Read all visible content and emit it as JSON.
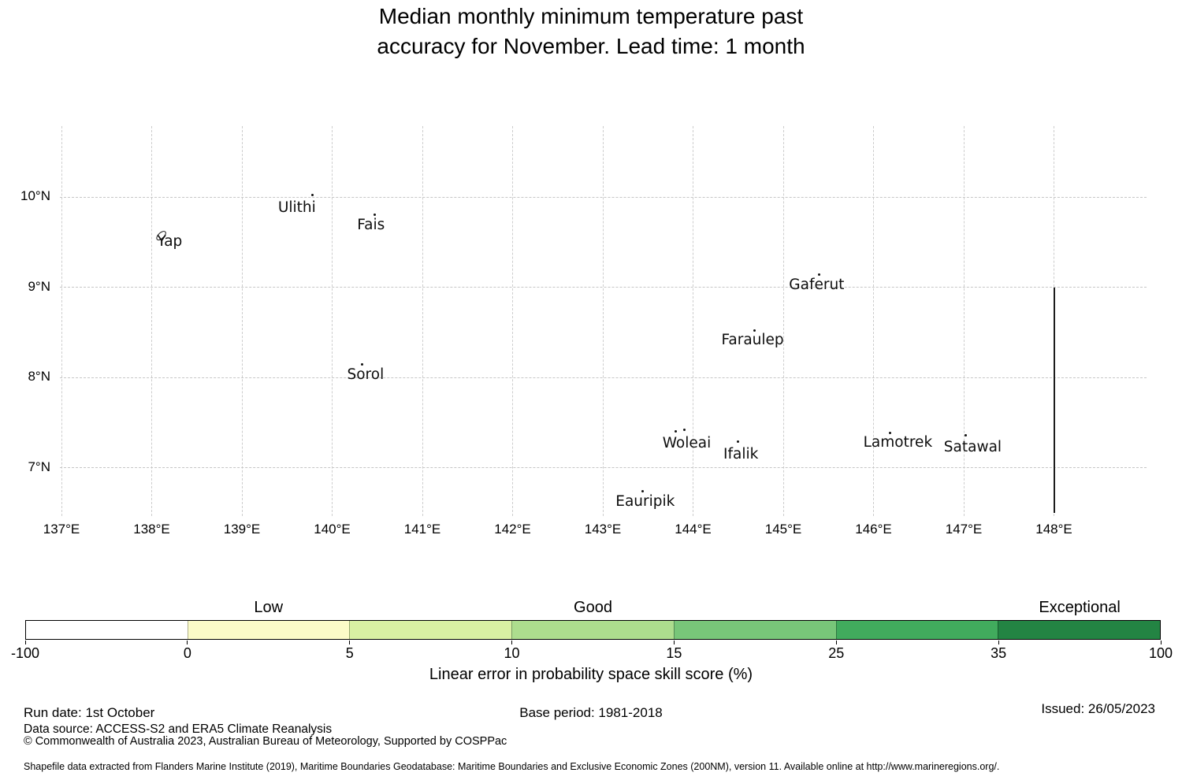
{
  "header": {
    "title_line1": "Median monthly minimum temperature past",
    "title_line2": "accuracy for November. Lead time: 1 month"
  },
  "chart_data": {
    "type": "scatter",
    "title": "Median monthly minimum temperature past accuracy for November. Lead time: 1 month",
    "x_axis": {
      "range": [
        136.99,
        149.03
      ],
      "grid": true,
      "ticks": [
        {
          "value": 137,
          "label": "137°E"
        },
        {
          "value": 138,
          "label": "138°E"
        },
        {
          "value": 139,
          "label": "139°E"
        },
        {
          "value": 140,
          "label": "140°E"
        },
        {
          "value": 141,
          "label": "141°E"
        },
        {
          "value": 142,
          "label": "142°E"
        },
        {
          "value": 143,
          "label": "143°E"
        },
        {
          "value": 144,
          "label": "144°E"
        },
        {
          "value": 145,
          "label": "145°E"
        },
        {
          "value": 146,
          "label": "146°E"
        },
        {
          "value": 147,
          "label": "147°E"
        },
        {
          "value": 148,
          "label": "148°E"
        }
      ]
    },
    "y_axis": {
      "range": [
        6.46,
        10.79
      ],
      "grid": true,
      "ticks": [
        {
          "value": 7,
          "label": "7°N"
        },
        {
          "value": 8,
          "label": "8°N"
        },
        {
          "value": 9,
          "label": "9°N"
        },
        {
          "value": 10,
          "label": "10°N"
        }
      ]
    },
    "islands": [
      {
        "name": "Yap",
        "shape": "outline",
        "points": [
          [
            138.1,
            9.57
          ]
        ],
        "label_pos": [
          138.2,
          9.49
        ]
      },
      {
        "name": "Ulithi",
        "shape": "dot",
        "points": [
          [
            139.78,
            10.02
          ]
        ],
        "label_pos": [
          139.61,
          9.87
        ]
      },
      {
        "name": "Fais",
        "shape": "dot",
        "points": [
          [
            140.47,
            9.8
          ]
        ],
        "label_pos": [
          140.43,
          9.68
        ]
      },
      {
        "name": "Sorol",
        "shape": "dot",
        "points": [
          [
            140.33,
            8.15
          ]
        ],
        "label_pos": [
          140.37,
          8.02
        ]
      },
      {
        "name": "Gaferut",
        "shape": "dot",
        "points": [
          [
            145.4,
            9.14
          ]
        ],
        "label_pos": [
          145.37,
          9.01
        ]
      },
      {
        "name": "Faraulep",
        "shape": "dot",
        "points": [
          [
            144.68,
            8.52
          ]
        ],
        "label_pos": [
          144.66,
          8.4
        ]
      },
      {
        "name": "Woleai",
        "shape": "dot",
        "points": [
          [
            143.81,
            7.4
          ],
          [
            143.9,
            7.42
          ]
        ],
        "label_pos": [
          143.93,
          7.26
        ]
      },
      {
        "name": "Ifalik",
        "shape": "dot",
        "points": [
          [
            144.5,
            7.29
          ]
        ],
        "label_pos": [
          144.53,
          7.14
        ]
      },
      {
        "name": "Lamotrek",
        "shape": "dot",
        "points": [
          [
            146.18,
            7.39
          ]
        ],
        "label_pos": [
          146.27,
          7.27
        ]
      },
      {
        "name": "Satawal",
        "shape": "dot",
        "points": [
          [
            147.02,
            7.36
          ]
        ],
        "label_pos": [
          147.1,
          7.22
        ]
      },
      {
        "name": "Eauripik",
        "shape": "dot",
        "points": [
          [
            143.44,
            6.74
          ]
        ],
        "label_pos": [
          143.47,
          6.61
        ]
      }
    ],
    "eez_boundary": {
      "lon": 148.0,
      "lat_start": 9.0,
      "lat_end": 6.5
    },
    "colorbar": {
      "label": "Linear error in probability space skill score (%)",
      "boundaries": [
        "-100",
        "0",
        "5",
        "10",
        "15",
        "25",
        "35",
        "100"
      ],
      "segment_colors": [
        "#ffffff",
        "#fbfbc8",
        "#d9f0a3",
        "#addd8e",
        "#78c679",
        "#41ab5d",
        "#238443"
      ],
      "categories": [
        {
          "label": "Low",
          "segment_index": 1
        },
        {
          "label": "Good",
          "segment_index": 3
        },
        {
          "label": "Exceptional",
          "segment_index": 6
        }
      ]
    }
  },
  "footer": {
    "run_date": "Run date: 1st October",
    "base_period": "Base period: 1981-2018",
    "issued": "Issued: 26/05/2023",
    "data_source": "Data source: ACCESS-S2 and ERA5 Climate Reanalysis",
    "copyright": "© Commonwealth of Australia 2023, Australian Bureau of Meteorology, Supported by COSPPac",
    "shapefile_note": "Shapefile data extracted from Flanders Marine Institute (2019), Maritime Boundaries Geodatabase: Maritime Boundaries and Exclusive Economic Zones (200NM), version 11. Available online at http://www.marineregions.org/."
  }
}
